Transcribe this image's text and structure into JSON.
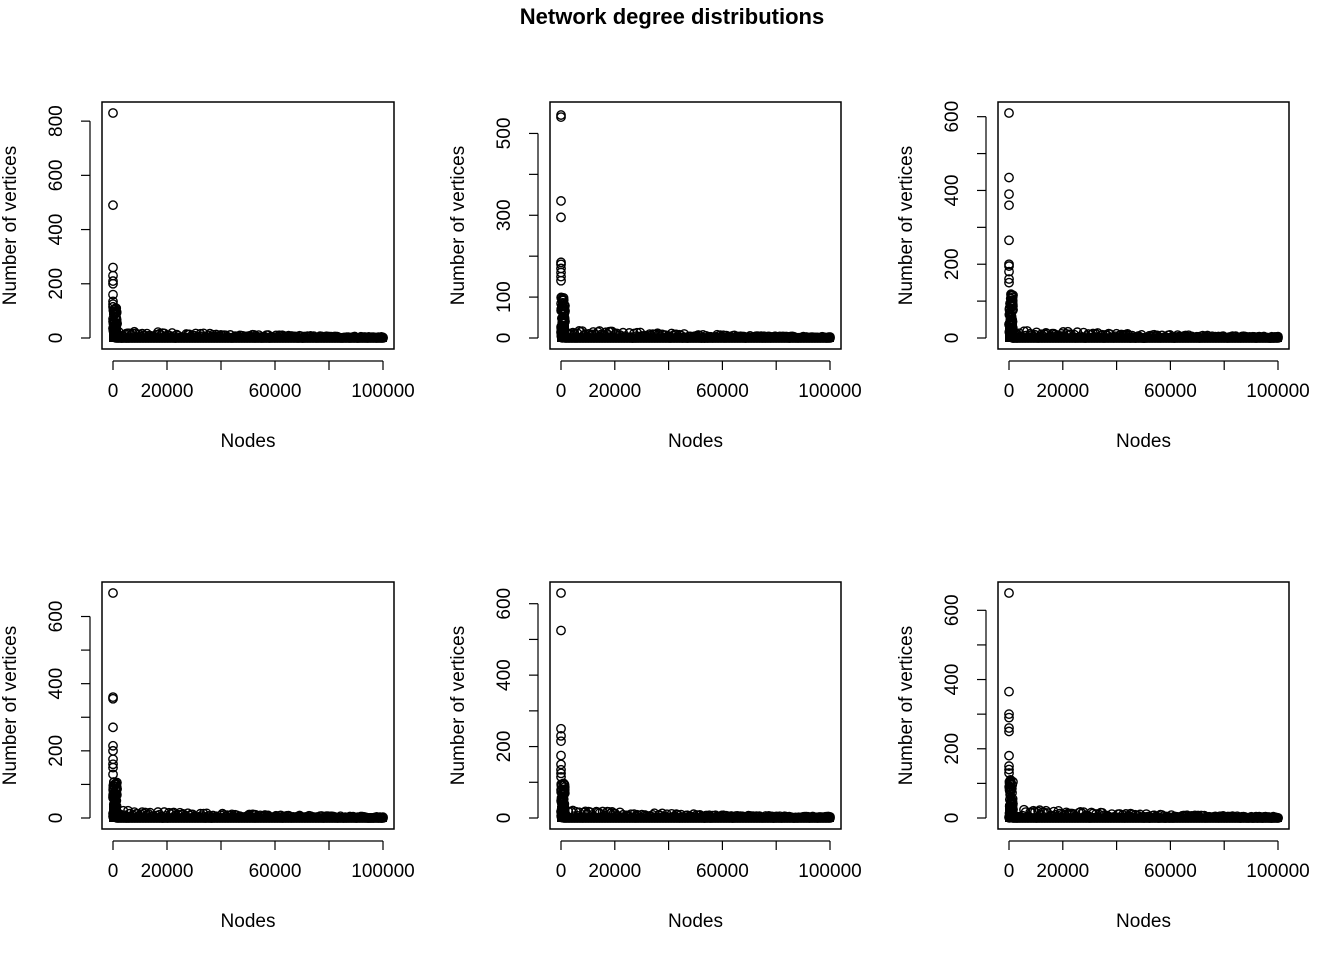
{
  "figure": {
    "title": "Network degree distributions"
  },
  "chart_data": [
    {
      "type": "scatter",
      "xlabel": "Nodes",
      "ylabel": "Number of vertices",
      "xlim": [
        0,
        100000
      ],
      "ylim": [
        0,
        830
      ],
      "xticks": [
        0,
        20000,
        40000,
        60000,
        80000,
        100000
      ],
      "xtick_labels": [
        "0",
        "20000",
        "",
        "60000",
        "",
        "100000"
      ],
      "yticks": [
        0,
        200,
        400,
        600,
        800
      ],
      "ytick_labels": [
        "0",
        "200",
        "400",
        "600",
        "800"
      ],
      "points": [
        [
          1,
          830
        ],
        [
          2,
          490
        ],
        [
          3,
          260
        ],
        [
          4,
          230
        ],
        [
          5,
          210
        ],
        [
          6,
          200
        ],
        [
          7,
          160
        ],
        [
          8,
          135
        ],
        [
          9,
          125
        ],
        [
          10,
          115
        ]
      ],
      "tail_head": 110,
      "tail_mid": 22,
      "tail_end": 5,
      "marker": "open-circle"
    },
    {
      "type": "scatter",
      "xlabel": "Nodes",
      "ylabel": "Number of vertices",
      "xlim": [
        0,
        100000
      ],
      "ylim": [
        0,
        550
      ],
      "xticks": [
        0,
        20000,
        40000,
        60000,
        80000,
        100000
      ],
      "xtick_labels": [
        "0",
        "20000",
        "",
        "60000",
        "",
        "100000"
      ],
      "yticks": [
        0,
        100,
        200,
        300,
        400,
        500
      ],
      "ytick_labels": [
        "0",
        "100",
        "",
        "300",
        "",
        "500"
      ],
      "points": [
        [
          1,
          545
        ],
        [
          2,
          540
        ],
        [
          3,
          335
        ],
        [
          4,
          295
        ],
        [
          5,
          185
        ],
        [
          6,
          180
        ],
        [
          7,
          170
        ],
        [
          8,
          160
        ],
        [
          9,
          150
        ],
        [
          10,
          140
        ]
      ],
      "tail_head": 100,
      "tail_mid": 18,
      "tail_end": 3,
      "marker": "open-circle"
    },
    {
      "type": "scatter",
      "xlabel": "Nodes",
      "ylabel": "Number of vertices",
      "xlim": [
        0,
        100000
      ],
      "ylim": [
        0,
        610
      ],
      "xticks": [
        0,
        20000,
        40000,
        60000,
        80000,
        100000
      ],
      "xtick_labels": [
        "0",
        "20000",
        "",
        "60000",
        "",
        "100000"
      ],
      "yticks": [
        0,
        100,
        200,
        300,
        400,
        500,
        600
      ],
      "ytick_labels": [
        "0",
        "",
        "200",
        "",
        "400",
        "",
        "600"
      ],
      "points": [
        [
          1,
          610
        ],
        [
          2,
          435
        ],
        [
          3,
          390
        ],
        [
          4,
          360
        ],
        [
          5,
          265
        ],
        [
          6,
          200
        ],
        [
          7,
          195
        ],
        [
          8,
          180
        ],
        [
          9,
          160
        ],
        [
          10,
          150
        ]
      ],
      "tail_head": 120,
      "tail_mid": 20,
      "tail_end": 4,
      "marker": "open-circle"
    },
    {
      "type": "scatter",
      "xlabel": "Nodes",
      "ylabel": "Number of vertices",
      "xlim": [
        0,
        100000
      ],
      "ylim": [
        0,
        670
      ],
      "xticks": [
        0,
        20000,
        40000,
        60000,
        80000,
        100000
      ],
      "xtick_labels": [
        "0",
        "20000",
        "",
        "60000",
        "",
        "100000"
      ],
      "yticks": [
        0,
        100,
        200,
        300,
        400,
        500,
        600
      ],
      "ytick_labels": [
        "0",
        "",
        "200",
        "",
        "400",
        "",
        "600"
      ],
      "points": [
        [
          1,
          670
        ],
        [
          2,
          360
        ],
        [
          3,
          355
        ],
        [
          4,
          270
        ],
        [
          5,
          215
        ],
        [
          6,
          200
        ],
        [
          7,
          175
        ],
        [
          8,
          160
        ],
        [
          9,
          150
        ],
        [
          10,
          130
        ]
      ],
      "tail_head": 110,
      "tail_mid": 20,
      "tail_end": 4,
      "marker": "open-circle"
    },
    {
      "type": "scatter",
      "xlabel": "Nodes",
      "ylabel": "Number of vertices",
      "xlim": [
        0,
        100000
      ],
      "ylim": [
        0,
        630
      ],
      "xticks": [
        0,
        20000,
        40000,
        60000,
        80000,
        100000
      ],
      "xtick_labels": [
        "0",
        "20000",
        "",
        "60000",
        "",
        "100000"
      ],
      "yticks": [
        0,
        100,
        200,
        300,
        400,
        500,
        600
      ],
      "ytick_labels": [
        "0",
        "",
        "200",
        "",
        "400",
        "",
        "600"
      ],
      "points": [
        [
          1,
          630
        ],
        [
          2,
          525
        ],
        [
          3,
          250
        ],
        [
          4,
          230
        ],
        [
          5,
          215
        ],
        [
          6,
          175
        ],
        [
          7,
          150
        ],
        [
          8,
          135
        ],
        [
          9,
          125
        ],
        [
          10,
          115
        ]
      ],
      "tail_head": 100,
      "tail_mid": 18,
      "tail_end": 4,
      "marker": "open-circle"
    },
    {
      "type": "scatter",
      "xlabel": "Nodes",
      "ylabel": "Number of vertices",
      "xlim": [
        0,
        100000
      ],
      "ylim": [
        0,
        650
      ],
      "xticks": [
        0,
        20000,
        40000,
        60000,
        80000,
        100000
      ],
      "xtick_labels": [
        "0",
        "20000",
        "",
        "60000",
        "",
        "100000"
      ],
      "yticks": [
        0,
        100,
        200,
        300,
        400,
        500,
        600
      ],
      "ytick_labels": [
        "0",
        "",
        "200",
        "",
        "400",
        "",
        "600"
      ],
      "points": [
        [
          1,
          650
        ],
        [
          2,
          365
        ],
        [
          3,
          300
        ],
        [
          4,
          290
        ],
        [
          5,
          260
        ],
        [
          6,
          250
        ],
        [
          7,
          180
        ],
        [
          8,
          150
        ],
        [
          9,
          140
        ],
        [
          10,
          130
        ]
      ],
      "tail_head": 120,
      "tail_mid": 22,
      "tail_end": 4,
      "marker": "open-circle"
    }
  ]
}
